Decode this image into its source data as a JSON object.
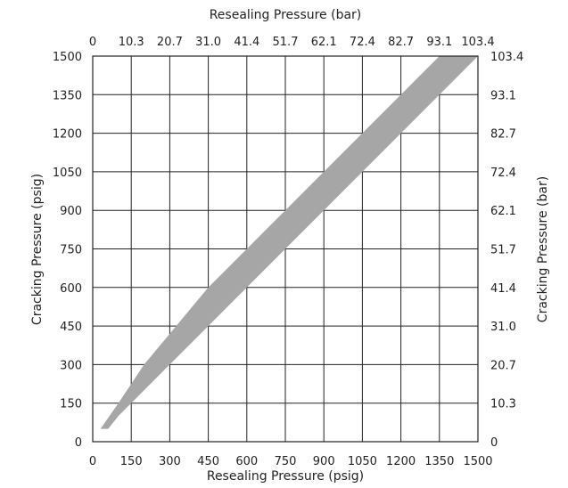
{
  "chart_data": {
    "type": "area",
    "title": "",
    "xlabel_bottom": "Resealing Pressure (psig)",
    "xlabel_top": "Resealing Pressure (bar)",
    "ylabel_left": "Cracking Pressure (psig)",
    "ylabel_right": "Cracking Pressure (bar)",
    "xlim": [
      0,
      1500
    ],
    "ylim": [
      0,
      1500
    ],
    "grid": true,
    "x_ticks": [
      0,
      150,
      300,
      450,
      600,
      750,
      900,
      1050,
      1200,
      1350,
      1500
    ],
    "y_ticks": [
      0,
      150,
      300,
      450,
      600,
      750,
      900,
      1050,
      1200,
      1350,
      1500
    ],
    "x_tick_labels_bottom": [
      "0",
      "150",
      "300",
      "450",
      "600",
      "750",
      "900",
      "1050",
      "1200",
      "1350",
      "1500"
    ],
    "x_tick_labels_top": [
      "0",
      "10.3",
      "20.7",
      "31.0",
      "41.4",
      "51.7",
      "62.1",
      "72.4",
      "82.7",
      "93.1",
      "103.4"
    ],
    "y_tick_labels_left": [
      "0",
      "150",
      "300",
      "450",
      "600",
      "750",
      "900",
      "1050",
      "1200",
      "1350",
      "1500"
    ],
    "y_tick_labels_right": [
      "0",
      "10.3",
      "20.7",
      "31.0",
      "41.4",
      "51.7",
      "62.1",
      "72.4",
      "82.7",
      "93.1",
      "103.4"
    ],
    "band": {
      "upper": [
        {
          "x": 30,
          "y": 50
        },
        {
          "x": 100,
          "y": 150
        },
        {
          "x": 200,
          "y": 300
        },
        {
          "x": 450,
          "y": 600
        },
        {
          "x": 700,
          "y": 850
        },
        {
          "x": 1000,
          "y": 1150
        },
        {
          "x": 1250,
          "y": 1400
        },
        {
          "x": 1350,
          "y": 1500
        }
      ],
      "lower": [
        {
          "x": 1500,
          "y": 1500
        },
        {
          "x": 1200,
          "y": 1200
        },
        {
          "x": 900,
          "y": 900
        },
        {
          "x": 600,
          "y": 600
        },
        {
          "x": 450,
          "y": 450
        },
        {
          "x": 250,
          "y": 250
        },
        {
          "x": 100,
          "y": 100
        },
        {
          "x": 60,
          "y": 50
        }
      ],
      "color": "#a6a6a6"
    }
  }
}
